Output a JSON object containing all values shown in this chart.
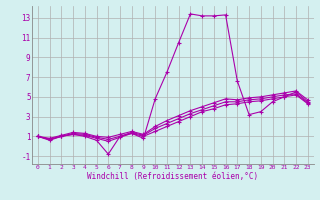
{
  "xlabel": "Windchill (Refroidissement éolien,°C)",
  "bg_color": "#d4f0f0",
  "grid_color": "#b0b0b0",
  "line_color": "#aa00aa",
  "xlim": [
    -0.5,
    23.5
  ],
  "ylim": [
    -1.8,
    14.2
  ],
  "xticks": [
    0,
    1,
    2,
    3,
    4,
    5,
    6,
    7,
    8,
    9,
    10,
    11,
    12,
    13,
    14,
    15,
    16,
    17,
    18,
    19,
    20,
    21,
    22,
    23
  ],
  "yticks": [
    -1,
    1,
    3,
    5,
    7,
    9,
    11,
    13
  ],
  "series1_x": [
    0,
    1,
    2,
    3,
    4,
    5,
    6,
    7,
    8,
    9,
    10,
    11,
    12,
    13,
    14,
    15,
    16,
    17,
    18,
    19,
    20,
    21,
    22,
    23
  ],
  "series1_y": [
    1.0,
    0.6,
    1.0,
    1.2,
    1.0,
    0.6,
    -0.8,
    1.0,
    1.3,
    0.8,
    4.8,
    7.5,
    10.5,
    13.4,
    13.2,
    13.2,
    13.3,
    6.6,
    3.2,
    3.5,
    4.5,
    5.0,
    5.5,
    4.5
  ],
  "series2_x": [
    0,
    1,
    2,
    3,
    4,
    5,
    6,
    7,
    8,
    9,
    10,
    11,
    12,
    13,
    14,
    15,
    16,
    17,
    18,
    19,
    20,
    21,
    22,
    23
  ],
  "series2_y": [
    1.0,
    0.7,
    1.0,
    1.2,
    1.1,
    0.8,
    0.5,
    0.9,
    1.3,
    1.0,
    1.5,
    2.0,
    2.5,
    3.0,
    3.5,
    3.8,
    4.2,
    4.3,
    4.5,
    4.6,
    4.8,
    5.0,
    5.2,
    4.3
  ],
  "series3_x": [
    0,
    1,
    2,
    3,
    4,
    5,
    6,
    7,
    8,
    9,
    10,
    11,
    12,
    13,
    14,
    15,
    16,
    17,
    18,
    19,
    20,
    21,
    22,
    23
  ],
  "series3_y": [
    1.0,
    0.7,
    1.0,
    1.3,
    1.2,
    0.9,
    0.7,
    1.0,
    1.4,
    1.1,
    1.8,
    2.3,
    2.8,
    3.3,
    3.7,
    4.1,
    4.5,
    4.5,
    4.7,
    4.8,
    5.0,
    5.2,
    5.3,
    4.4
  ],
  "series4_x": [
    0,
    1,
    2,
    3,
    4,
    5,
    6,
    7,
    8,
    9,
    10,
    11,
    12,
    13,
    14,
    15,
    16,
    17,
    18,
    19,
    20,
    21,
    22,
    23
  ],
  "series4_y": [
    1.0,
    0.8,
    1.1,
    1.4,
    1.3,
    1.0,
    0.9,
    1.2,
    1.5,
    1.2,
    2.0,
    2.6,
    3.1,
    3.6,
    4.0,
    4.4,
    4.8,
    4.7,
    4.9,
    5.0,
    5.2,
    5.4,
    5.6,
    4.7
  ]
}
